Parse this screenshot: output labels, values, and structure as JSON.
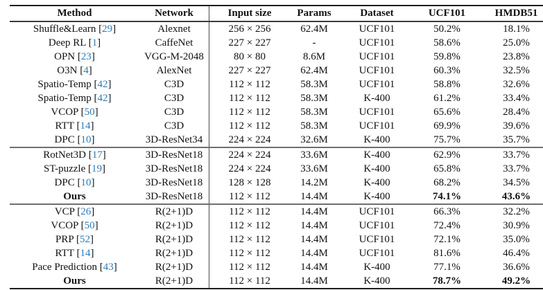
{
  "colors": {
    "cite_blue": "#2c7bb9",
    "highlight_yellow": "#f9f2a2",
    "rule_dark": "#1b1b1b",
    "rule_gray": "#6f6f6f"
  },
  "table": {
    "columns": [
      "Method",
      "Network",
      "Input size",
      "Params",
      "Dataset",
      "UCF101",
      "HMDB51"
    ],
    "rows": [
      {
        "method": "Shuffle&Learn",
        "cite": "29",
        "network": "Alexnet",
        "input_size": "256 × 256",
        "params": "62.4M",
        "dataset": "UCF101",
        "ucf101": "50.2%",
        "hmdb51": "18.1%",
        "bold": false,
        "highlight": false,
        "rule_above": false
      },
      {
        "method": "Deep RL",
        "cite": "1",
        "network": "CaffeNet",
        "input_size": "227 × 227",
        "params": "-",
        "dataset": "UCF101",
        "ucf101": "58.6%",
        "hmdb51": "25.0%",
        "bold": false,
        "highlight": false,
        "rule_above": false
      },
      {
        "method": "OPN",
        "cite": "23",
        "network": "VGG-M-2048",
        "input_size": "80 × 80",
        "params": "8.6M",
        "dataset": "UCF101",
        "ucf101": "59.8%",
        "hmdb51": "23.8%",
        "bold": false,
        "highlight": false,
        "rule_above": false
      },
      {
        "method": "O3N",
        "cite": "4",
        "network": "AlexNet",
        "input_size": "227 × 227",
        "params": "62.4M",
        "dataset": "UCF101",
        "ucf101": "60.3%",
        "hmdb51": "32.5%",
        "bold": false,
        "highlight": false,
        "rule_above": false
      },
      {
        "method": "Spatio-Temp",
        "cite": "42",
        "network": "C3D",
        "input_size": "112 × 112",
        "params": "58.3M",
        "dataset": "UCF101",
        "ucf101": "58.8%",
        "hmdb51": "32.6%",
        "bold": false,
        "highlight": false,
        "rule_above": false
      },
      {
        "method": "Spatio-Temp",
        "cite": "42",
        "network": "C3D",
        "input_size": "112 × 112",
        "params": "58.3M",
        "dataset": "K-400",
        "ucf101": "61.2%",
        "hmdb51": "33.4%",
        "bold": false,
        "highlight": false,
        "rule_above": false
      },
      {
        "method": "VCOP",
        "cite": "50",
        "network": "C3D",
        "input_size": "112 × 112",
        "params": "58.3M",
        "dataset": "UCF101",
        "ucf101": "65.6%",
        "hmdb51": "28.4%",
        "bold": false,
        "highlight": false,
        "rule_above": false
      },
      {
        "method": "RTT",
        "cite": "14",
        "network": "C3D",
        "input_size": "112 × 112",
        "params": "58.3M",
        "dataset": "UCF101",
        "ucf101": "69.9%",
        "hmdb51": "39.6%",
        "bold": false,
        "highlight": false,
        "rule_above": false
      },
      {
        "method": "DPC",
        "cite": "10",
        "network": "3D-ResNet34",
        "input_size": "224 × 224",
        "params": "32.6M",
        "dataset": "K-400",
        "ucf101": "75.7%",
        "hmdb51": "35.7%",
        "bold": false,
        "highlight": false,
        "rule_above": false
      },
      {
        "method": "RotNet3D",
        "cite": "17",
        "network": "3D-ResNet18",
        "input_size": "224 × 224",
        "params": "33.6M",
        "dataset": "K-400",
        "ucf101": "62.9%",
        "hmdb51": "33.7%",
        "bold": false,
        "highlight": false,
        "rule_above": true
      },
      {
        "method": "ST-puzzle",
        "cite": "19",
        "network": "3D-ResNet18",
        "input_size": "224 × 224",
        "params": "33.6M",
        "dataset": "K-400",
        "ucf101": "65.8%",
        "hmdb51": "33.7%",
        "bold": false,
        "highlight": false,
        "rule_above": false
      },
      {
        "method": "DPC",
        "cite": "10",
        "network": "3D-ResNet18",
        "input_size": "128 × 128",
        "params": "14.2M",
        "dataset": "K-400",
        "ucf101": "68.2%",
        "hmdb51": "34.5%",
        "bold": false,
        "highlight": false,
        "rule_above": false
      },
      {
        "method": "Ours",
        "cite": null,
        "network": "3D-ResNet18",
        "input_size": "112 × 112",
        "params": "14.4M",
        "dataset": "K-400",
        "ucf101": "74.1%",
        "hmdb51": "43.6%",
        "bold": true,
        "highlight": true,
        "rule_above": false
      },
      {
        "method": "VCP",
        "cite": "26",
        "network": "R(2+1)D",
        "input_size": "112 × 112",
        "params": "14.4M",
        "dataset": "UCF101",
        "ucf101": "66.3%",
        "hmdb51": "32.2%",
        "bold": false,
        "highlight": false,
        "rule_above": true
      },
      {
        "method": "VCOP",
        "cite": "50",
        "network": "R(2+1)D",
        "input_size": "112 × 112",
        "params": "14.4M",
        "dataset": "UCF101",
        "ucf101": "72.4%",
        "hmdb51": "30.9%",
        "bold": false,
        "highlight": false,
        "rule_above": false
      },
      {
        "method": "PRP",
        "cite": "52",
        "network": "R(2+1)D",
        "input_size": "112 × 112",
        "params": "14.4M",
        "dataset": "UCF101",
        "ucf101": "72.1%",
        "hmdb51": "35.0%",
        "bold": false,
        "highlight": false,
        "rule_above": false
      },
      {
        "method": "RTT",
        "cite": "14",
        "network": "R(2+1)D",
        "input_size": "112 × 112",
        "params": "14.4M",
        "dataset": "UCF101",
        "ucf101": "81.6%",
        "hmdb51": "46.4%",
        "bold": false,
        "highlight": false,
        "rule_above": false
      },
      {
        "method": "Pace Prediction",
        "cite": "43",
        "network": "R(2+1)D",
        "input_size": "112 × 112",
        "params": "14.4M",
        "dataset": "K-400",
        "ucf101": "77.1%",
        "hmdb51": "36.6%",
        "bold": false,
        "highlight": false,
        "rule_above": false
      },
      {
        "method": "Ours",
        "cite": null,
        "network": "R(2+1)D",
        "input_size": "112 × 112",
        "params": "14.4M",
        "dataset": "K-400",
        "ucf101": "78.7%",
        "hmdb51": "49.2%",
        "bold": true,
        "highlight": true,
        "rule_above": false
      }
    ]
  }
}
